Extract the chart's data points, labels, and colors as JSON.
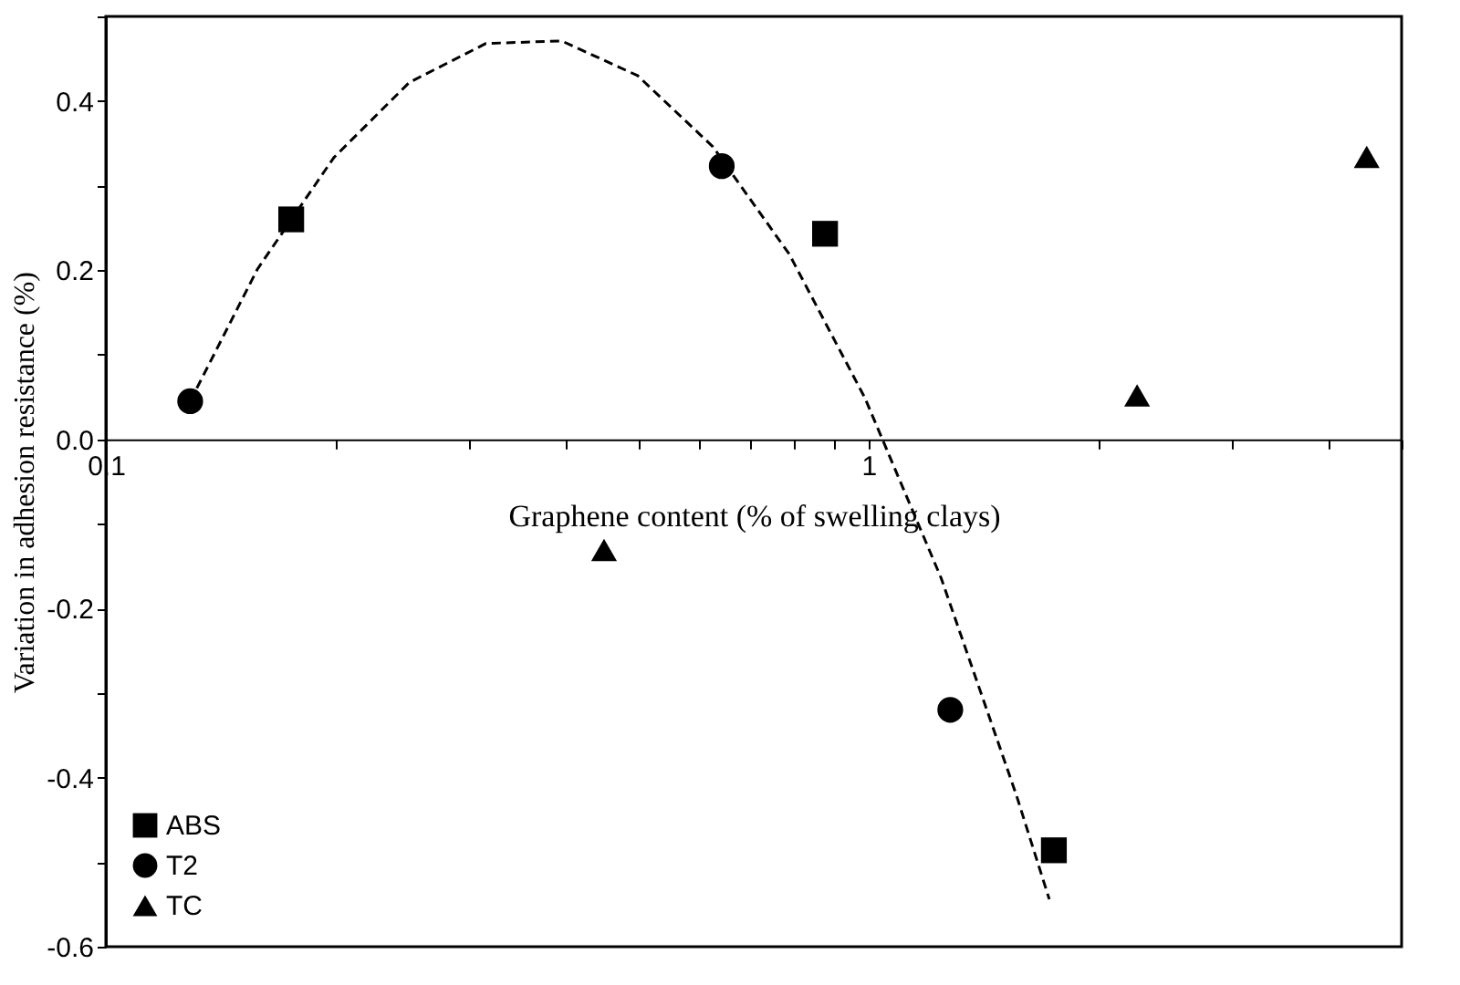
{
  "chart_data": {
    "type": "scatter",
    "xlabel": "Graphene content (% of swelling clays)",
    "ylabel": "Variation in adhesion resistance (%)",
    "log": "x",
    "xlim": [
      0.1,
      5
    ],
    "ylim": [
      -0.6,
      0.5
    ],
    "xticks": [
      0.1,
      {
        "value": 0.2,
        "label": null
      },
      {
        "value": 0.3,
        "label": null
      },
      {
        "value": 0.4,
        "label": null
      },
      {
        "value": 0.5,
        "label": null
      },
      {
        "value": 0.6,
        "label": null
      },
      {
        "value": 0.7,
        "label": null
      },
      {
        "value": 0.8,
        "label": null
      },
      {
        "value": 0.9,
        "label": null
      },
      1,
      {
        "value": 2,
        "label": null
      },
      {
        "value": 3,
        "label": null
      },
      {
        "value": 4,
        "label": null
      },
      {
        "value": 5,
        "label": null
      }
    ],
    "yticks": [
      -0.6,
      {
        "value": -0.5,
        "label": null
      },
      -0.4,
      {
        "value": -0.3,
        "label": null
      },
      -0.2,
      {
        "value": -0.1,
        "label": null
      },
      {
        "value": 0,
        "label": "0.0"
      },
      {
        "value": 0.1,
        "label": null
      },
      0.2,
      {
        "value": 0.3,
        "label": null
      },
      0.4,
      {
        "value": 0.5,
        "label": null
      }
    ],
    "grid": false,
    "legend": "bottom left",
    "series": [
      {
        "name": "ABS",
        "marker": "square",
        "color": "#000000",
        "x": [
          0.175,
          0.877,
          1.75
        ],
        "values": [
          0.26,
          0.243,
          -0.486
        ]
      },
      {
        "name": "T2",
        "marker": "circle",
        "color": "#000000",
        "x": [
          0.129,
          0.642,
          1.28
        ],
        "values": [
          0.045,
          0.323,
          -0.32
        ]
      },
      {
        "name": "TC",
        "marker": "triangle",
        "color": "#000000",
        "x": [
          0.45,
          2.25,
          4.5
        ],
        "values": [
          -0.131,
          0.052,
          0.334
        ]
      },
      {
        "type": "line",
        "line_style": "dashed",
        "marker": "none",
        "color": "#000000",
        "x": [
          0.129,
          0.158,
          0.199,
          0.25,
          0.315,
          0.396,
          0.498,
          0.625,
          0.787,
          0.989,
          1.245,
          1.563,
          1.726
        ],
        "values": [
          0.045,
          0.201,
          0.333,
          0.422,
          0.468,
          0.471,
          0.43,
          0.346,
          0.219,
          0.049,
          -0.164,
          -0.421,
          -0.544
        ]
      }
    ]
  }
}
